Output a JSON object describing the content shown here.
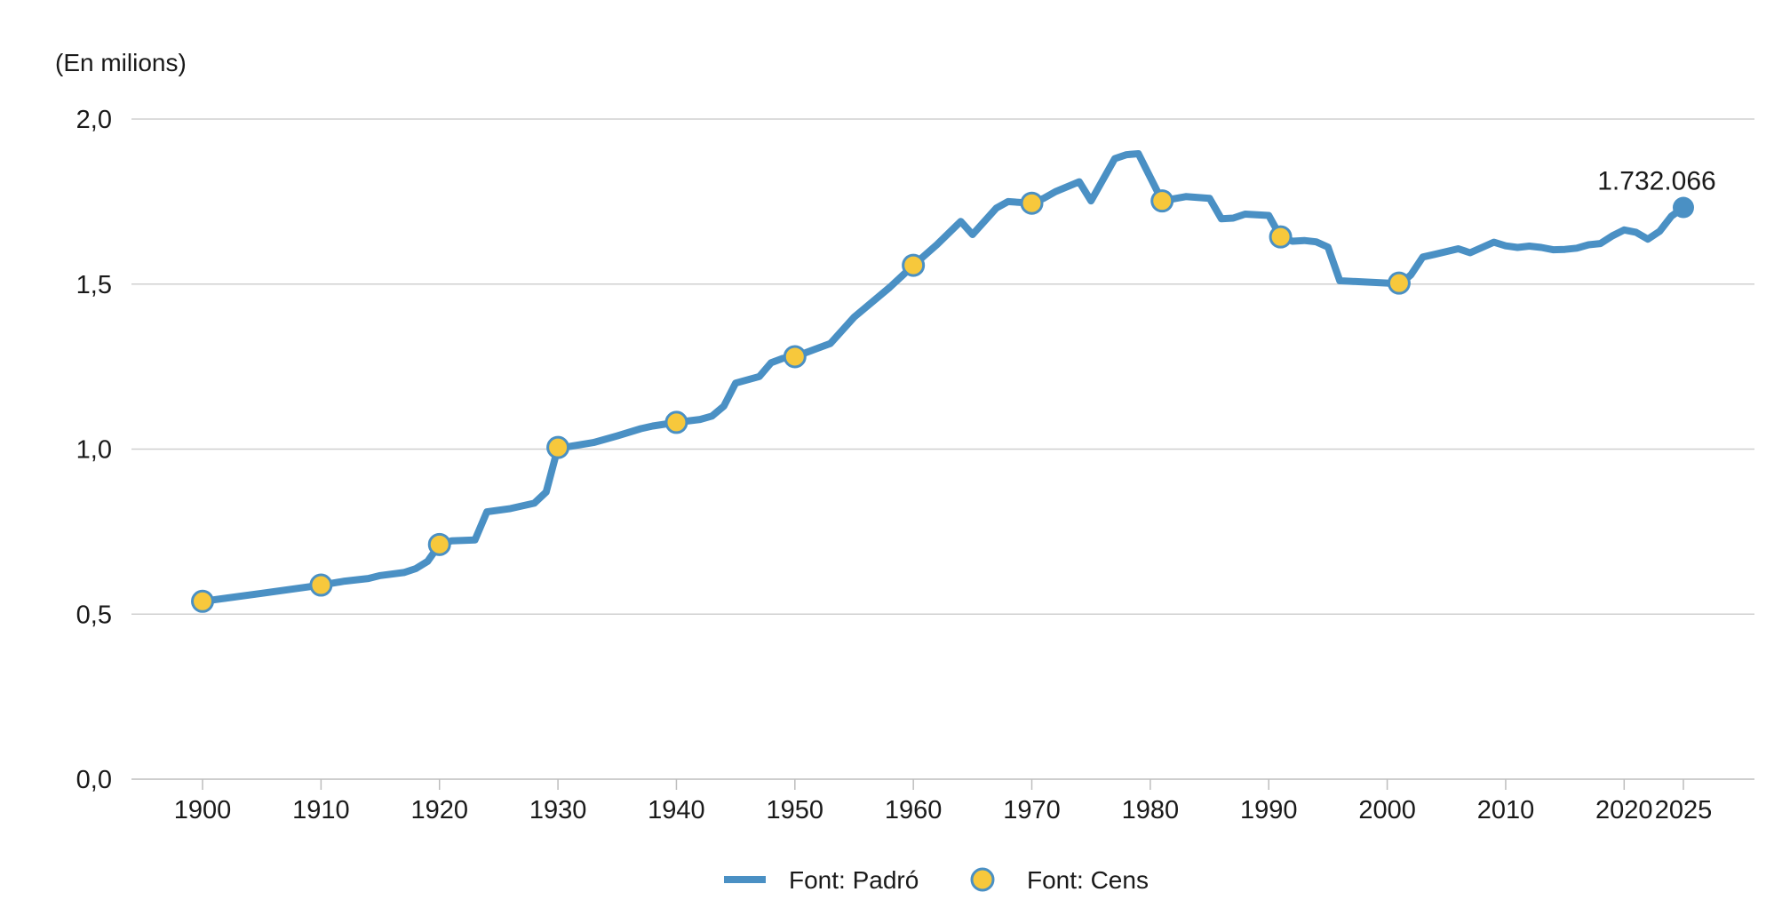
{
  "chart_data": {
    "type": "line",
    "unit_label": "(En milions)",
    "xlabel": "",
    "ylabel": "",
    "xlim": [
      1894,
      2031
    ],
    "ylim": [
      0,
      2.0
    ],
    "y_ticks": [
      0,
      0.5,
      1.0,
      1.5,
      2.0
    ],
    "y_tick_labels": [
      "0,0",
      "0,5",
      "1,0",
      "1,5",
      "2,0"
    ],
    "x_ticks": [
      1900,
      1910,
      1920,
      1930,
      1940,
      1950,
      1960,
      1970,
      1980,
      1990,
      2000,
      2010,
      2020,
      2025
    ],
    "x_tick_labels": [
      "1900",
      "1910",
      "1920",
      "1930",
      "1940",
      "1950",
      "1960",
      "1970",
      "1980",
      "1990",
      "2000",
      "2010",
      "2020",
      "2025"
    ],
    "grid": true,
    "legend_position": "bottom-center",
    "colors": {
      "line": "#4a90c4",
      "census_fill": "#f7c83c",
      "census_stroke": "#4a90c4",
      "grid": "#d0d0d0"
    },
    "annotation": {
      "label": "1.732.066",
      "x": 2025,
      "y": 1.732
    },
    "series": [
      {
        "name": "Font: Padró",
        "kind": "line",
        "x": [
          1900,
          1905,
          1910,
          1912,
          1914,
          1915,
          1917,
          1918,
          1919,
          1920,
          1921,
          1923,
          1924,
          1926,
          1928,
          1929,
          1930,
          1931,
          1933,
          1935,
          1937,
          1938,
          1940,
          1942,
          1943,
          1944,
          1945,
          1947,
          1948,
          1949,
          1950,
          1953,
          1955,
          1956,
          1958,
          1960,
          1962,
          1964,
          1965,
          1967,
          1968,
          1970,
          1971,
          1972,
          1974,
          1975,
          1977,
          1978,
          1979,
          1981,
          1983,
          1985,
          1986,
          1987,
          1988,
          1989,
          1990,
          1991,
          1992,
          1993,
          1994,
          1995,
          1996,
          2000,
          2001,
          2002,
          2003,
          2004,
          2006,
          2007,
          2009,
          2010,
          2011,
          2012,
          2013,
          2014,
          2015,
          2016,
          2017,
          2018,
          2019,
          2020,
          2021,
          2022,
          2023,
          2024,
          2025
        ],
        "y": [
          0.539,
          0.563,
          0.588,
          0.6,
          0.608,
          0.617,
          0.626,
          0.638,
          0.66,
          0.711,
          0.722,
          0.725,
          0.81,
          0.82,
          0.836,
          0.87,
          1.005,
          1.008,
          1.02,
          1.04,
          1.062,
          1.07,
          1.081,
          1.09,
          1.1,
          1.13,
          1.2,
          1.22,
          1.262,
          1.275,
          1.28,
          1.32,
          1.4,
          1.43,
          1.49,
          1.557,
          1.62,
          1.69,
          1.65,
          1.73,
          1.75,
          1.745,
          1.76,
          1.78,
          1.81,
          1.752,
          1.88,
          1.892,
          1.895,
          1.752,
          1.765,
          1.76,
          1.698,
          1.7,
          1.712,
          1.71,
          1.708,
          1.643,
          1.63,
          1.632,
          1.628,
          1.612,
          1.51,
          1.503,
          1.497,
          1.528,
          1.582,
          1.59,
          1.607,
          1.595,
          1.627,
          1.616,
          1.611,
          1.615,
          1.611,
          1.604,
          1.605,
          1.609,
          1.619,
          1.623,
          1.646,
          1.664,
          1.657,
          1.636,
          1.66,
          1.706,
          1.732
        ]
      },
      {
        "name": "Font: Cens",
        "kind": "points",
        "x": [
          1900,
          1910,
          1920,
          1930,
          1940,
          1950,
          1960,
          1970,
          1981,
          1991,
          2001
        ],
        "y": [
          0.539,
          0.588,
          0.711,
          1.005,
          1.081,
          1.28,
          1.557,
          1.745,
          1.752,
          1.643,
          1.503
        ]
      }
    ]
  }
}
